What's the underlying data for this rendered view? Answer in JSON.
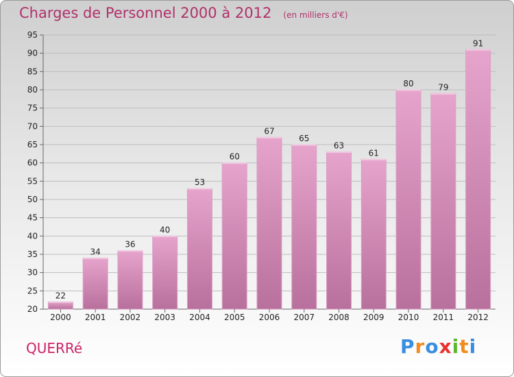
{
  "title": "Charges de Personnel 2000 à 2012",
  "subtitle": "(en milliers d'€)",
  "commune": "QUERRé",
  "logo": {
    "letters": [
      "P",
      "r",
      "o",
      "x",
      "i",
      "t",
      "i"
    ],
    "colors": [
      "#3a8ee0",
      "#f28c1e",
      "#3a8ee0",
      "#e8322e",
      "#5cb82e",
      "#f28c1e",
      "#3a8ee0"
    ]
  },
  "colors": {
    "bar": "#d88ab8",
    "accent": "#b0306a"
  },
  "chart_data": {
    "type": "bar",
    "categories": [
      "2000",
      "2001",
      "2002",
      "2003",
      "2004",
      "2005",
      "2006",
      "2007",
      "2008",
      "2009",
      "2010",
      "2011",
      "2012"
    ],
    "values": [
      22,
      34,
      36,
      40,
      53,
      60,
      67,
      65,
      63,
      61,
      80,
      79,
      91
    ],
    "ylim": [
      20,
      95
    ],
    "yticks": [
      20,
      25,
      30,
      35,
      40,
      45,
      50,
      55,
      60,
      65,
      70,
      75,
      80,
      85,
      90,
      95
    ],
    "grid": true
  }
}
